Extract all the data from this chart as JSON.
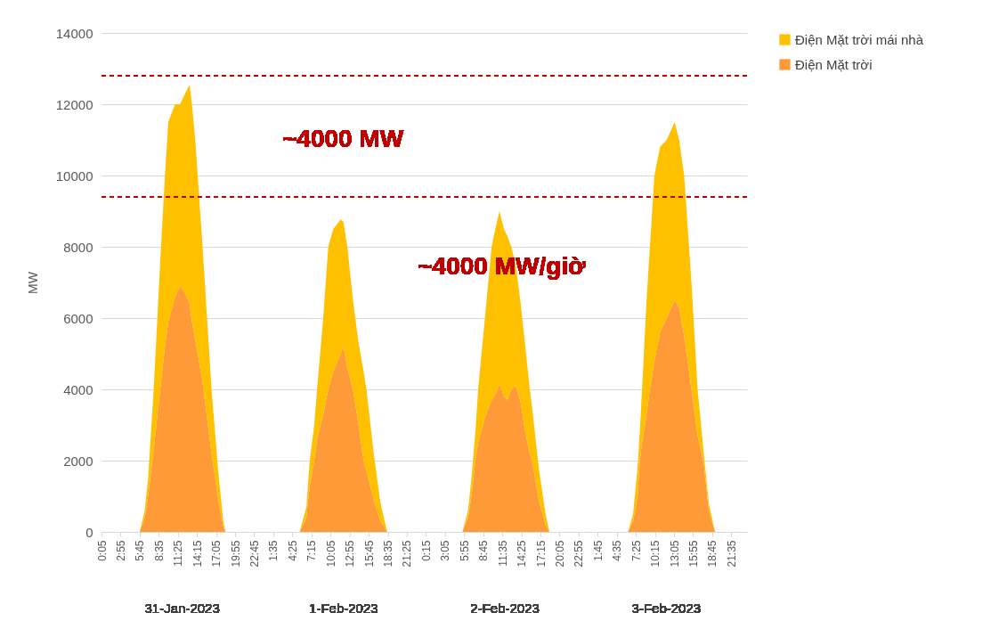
{
  "chart_data": {
    "type": "area",
    "stacked": true,
    "ylabel": "MW",
    "legend": "right",
    "grid": "y",
    "x": [
      "2023-01-31T05:45",
      "2023-01-31T06:30",
      "2023-01-31T07:00",
      "2023-01-31T07:50",
      "2023-01-31T08:55",
      "2023-01-31T09:30",
      "2023-01-31T10:00",
      "2023-01-31T11:00",
      "2023-01-31T11:45",
      "2023-01-31T12:30",
      "2023-01-31T13:10",
      "2023-01-31T13:30",
      "2023-01-31T14:00",
      "2023-01-31T15:05",
      "2023-01-31T16:25",
      "2023-01-31T17:30",
      "2023-01-31T18:10",
      "2023-01-31T18:30",
      "2023-02-01T05:30",
      "2023-02-01T06:30",
      "2023-02-01T07:00",
      "2023-02-01T07:40",
      "2023-02-01T08:05",
      "2023-02-01T09:00",
      "2023-02-01T09:45",
      "2023-02-01T10:30",
      "2023-02-01T11:35",
      "2023-02-01T12:00",
      "2023-02-01T12:35",
      "2023-02-01T13:25",
      "2023-02-01T14:15",
      "2023-02-01T15:00",
      "2023-02-01T15:25",
      "2023-02-01T16:30",
      "2023-02-01T17:30",
      "2023-02-01T18:30",
      "2023-02-02T05:40",
      "2023-02-02T06:30",
      "2023-02-02T07:00",
      "2023-02-02T07:35",
      "2023-02-02T08:00",
      "2023-02-02T09:00",
      "2023-02-02T10:00",
      "2023-02-02T10:40",
      "2023-02-02T11:10",
      "2023-02-02T11:50",
      "2023-02-02T12:20",
      "2023-02-02T12:55",
      "2023-02-02T13:35",
      "2023-02-02T14:15",
      "2023-02-02T15:00",
      "2023-02-02T15:40",
      "2023-02-02T16:00",
      "2023-02-02T17:00",
      "2023-02-02T18:00",
      "2023-02-02T18:35",
      "2023-02-03T06:15",
      "2023-02-03T07:00",
      "2023-02-03T07:40",
      "2023-02-03T08:00",
      "2023-02-03T08:20",
      "2023-02-03T09:00",
      "2023-02-03T09:30",
      "2023-02-03T10:10",
      "2023-02-03T11:00",
      "2023-02-03T12:00",
      "2023-02-03T13:10",
      "2023-02-03T13:50",
      "2023-02-03T14:35",
      "2023-02-03T15:40",
      "2023-02-03T16:35",
      "2023-02-03T17:30",
      "2023-02-03T18:15",
      "2023-02-03T19:10"
    ],
    "series": [
      {
        "name": "Điện Mặt trời",
        "color": "#fe9a37",
        "values": [
          0,
          400,
          1000,
          2300,
          4200,
          5200,
          5900,
          6600,
          6900,
          6700,
          6400,
          5900,
          5400,
          4200,
          2200,
          800,
          150,
          0,
          0,
          400,
          1300,
          2000,
          2600,
          3300,
          4000,
          4500,
          5000,
          5220,
          4600,
          4000,
          3000,
          2000,
          1700,
          900,
          300,
          0,
          0,
          400,
          1000,
          2000,
          2500,
          3200,
          3700,
          3900,
          4150,
          3800,
          3700,
          4000,
          4100,
          3700,
          2800,
          2200,
          2000,
          900,
          200,
          0,
          0,
          300,
          1000,
          2000,
          2500,
          3300,
          4000,
          4800,
          5600,
          6000,
          6500,
          6300,
          5500,
          4000,
          2700,
          1900,
          600,
          0
        ]
      },
      {
        "name": "Điện Mặt trời mái nhà",
        "color": "#ffc000",
        "values": [
          0,
          200,
          500,
          1700,
          3800,
          4800,
          5600,
          5400,
          5100,
          5600,
          6150,
          6100,
          5600,
          3800,
          1800,
          700,
          150,
          0,
          0,
          300,
          700,
          1000,
          1400,
          2700,
          4000,
          4000,
          3770,
          3480,
          3400,
          2500,
          2300,
          2500,
          2300,
          1300,
          500,
          0,
          0,
          200,
          500,
          800,
          1500,
          2800,
          4300,
          4700,
          4850,
          4700,
          4600,
          4000,
          3400,
          2800,
          2400,
          1800,
          1500,
          900,
          300,
          0,
          0,
          200,
          800,
          800,
          1500,
          3200,
          4000,
          5200,
          5200,
          5000,
          5000,
          4700,
          4500,
          3000,
          1300,
          300,
          200,
          0
        ]
      }
    ],
    "xlim": [
      "2023-01-31T00:05",
      "2023-02-03T23:55"
    ],
    "xticks": [
      {
        "value": "2023-01-31T00:05",
        "label": "0:05"
      },
      {
        "value": "2023-01-31T02:55",
        "label": "2:55"
      },
      {
        "value": "2023-01-31T05:45",
        "label": "5:45"
      },
      {
        "value": "2023-01-31T08:35",
        "label": "8:35"
      },
      {
        "value": "2023-01-31T11:25",
        "label": "11:25"
      },
      {
        "value": "2023-01-31T14:15",
        "label": "14:15"
      },
      {
        "value": "2023-01-31T17:05",
        "label": "17:05"
      },
      {
        "value": "2023-01-31T19:55",
        "label": "19:55"
      },
      {
        "value": "2023-01-31T22:45",
        "label": "22:45"
      },
      {
        "value": "2023-02-01T01:35",
        "label": "1:35"
      },
      {
        "value": "2023-02-01T04:25",
        "label": "4:25"
      },
      {
        "value": "2023-02-01T07:15",
        "label": "7:15"
      },
      {
        "value": "2023-02-01T10:05",
        "label": "10:05"
      },
      {
        "value": "2023-02-01T12:55",
        "label": "12:55"
      },
      {
        "value": "2023-02-01T15:45",
        "label": "15:45"
      },
      {
        "value": "2023-02-01T18:35",
        "label": "18:35"
      },
      {
        "value": "2023-02-01T21:25",
        "label": "21:25"
      },
      {
        "value": "2023-02-02T00:15",
        "label": "0:15"
      },
      {
        "value": "2023-02-02T03:05",
        "label": "3:05"
      },
      {
        "value": "2023-02-02T05:55",
        "label": "5:55"
      },
      {
        "value": "2023-02-02T08:45",
        "label": "8:45"
      },
      {
        "value": "2023-02-02T11:35",
        "label": "11:35"
      },
      {
        "value": "2023-02-02T14:25",
        "label": "14:25"
      },
      {
        "value": "2023-02-02T17:15",
        "label": "17:15"
      },
      {
        "value": "2023-02-02T20:05",
        "label": "20:05"
      },
      {
        "value": "2023-02-02T22:55",
        "label": "22:55"
      },
      {
        "value": "2023-02-03T01:45",
        "label": "1:45"
      },
      {
        "value": "2023-02-03T04:35",
        "label": "4:35"
      },
      {
        "value": "2023-02-03T07:25",
        "label": "7:25"
      },
      {
        "value": "2023-02-03T10:15",
        "label": "10:15"
      },
      {
        "value": "2023-02-03T13:05",
        "label": "13:05"
      },
      {
        "value": "2023-02-03T15:55",
        "label": "15:55"
      },
      {
        "value": "2023-02-03T18:45",
        "label": "18:45"
      },
      {
        "value": "2023-02-03T21:35",
        "label": "21:35"
      }
    ],
    "ylim": [
      0,
      14000
    ],
    "yticks": [
      0,
      2000,
      4000,
      6000,
      8000,
      10000,
      12000,
      14000
    ],
    "ref_lines": [
      {
        "axis": "y",
        "value": 12800,
        "color": "#c00000",
        "line_style": "dashed"
      },
      {
        "axis": "y",
        "value": 9400,
        "color": "#c00000",
        "line_style": "dashed"
      }
    ],
    "annotations": [
      "~4000 MW",
      "~4000 MW/giờ",
      "31-Jan-2023",
      "1-Feb-2023",
      "2-Feb-2023",
      "3-Feb-2023"
    ]
  }
}
